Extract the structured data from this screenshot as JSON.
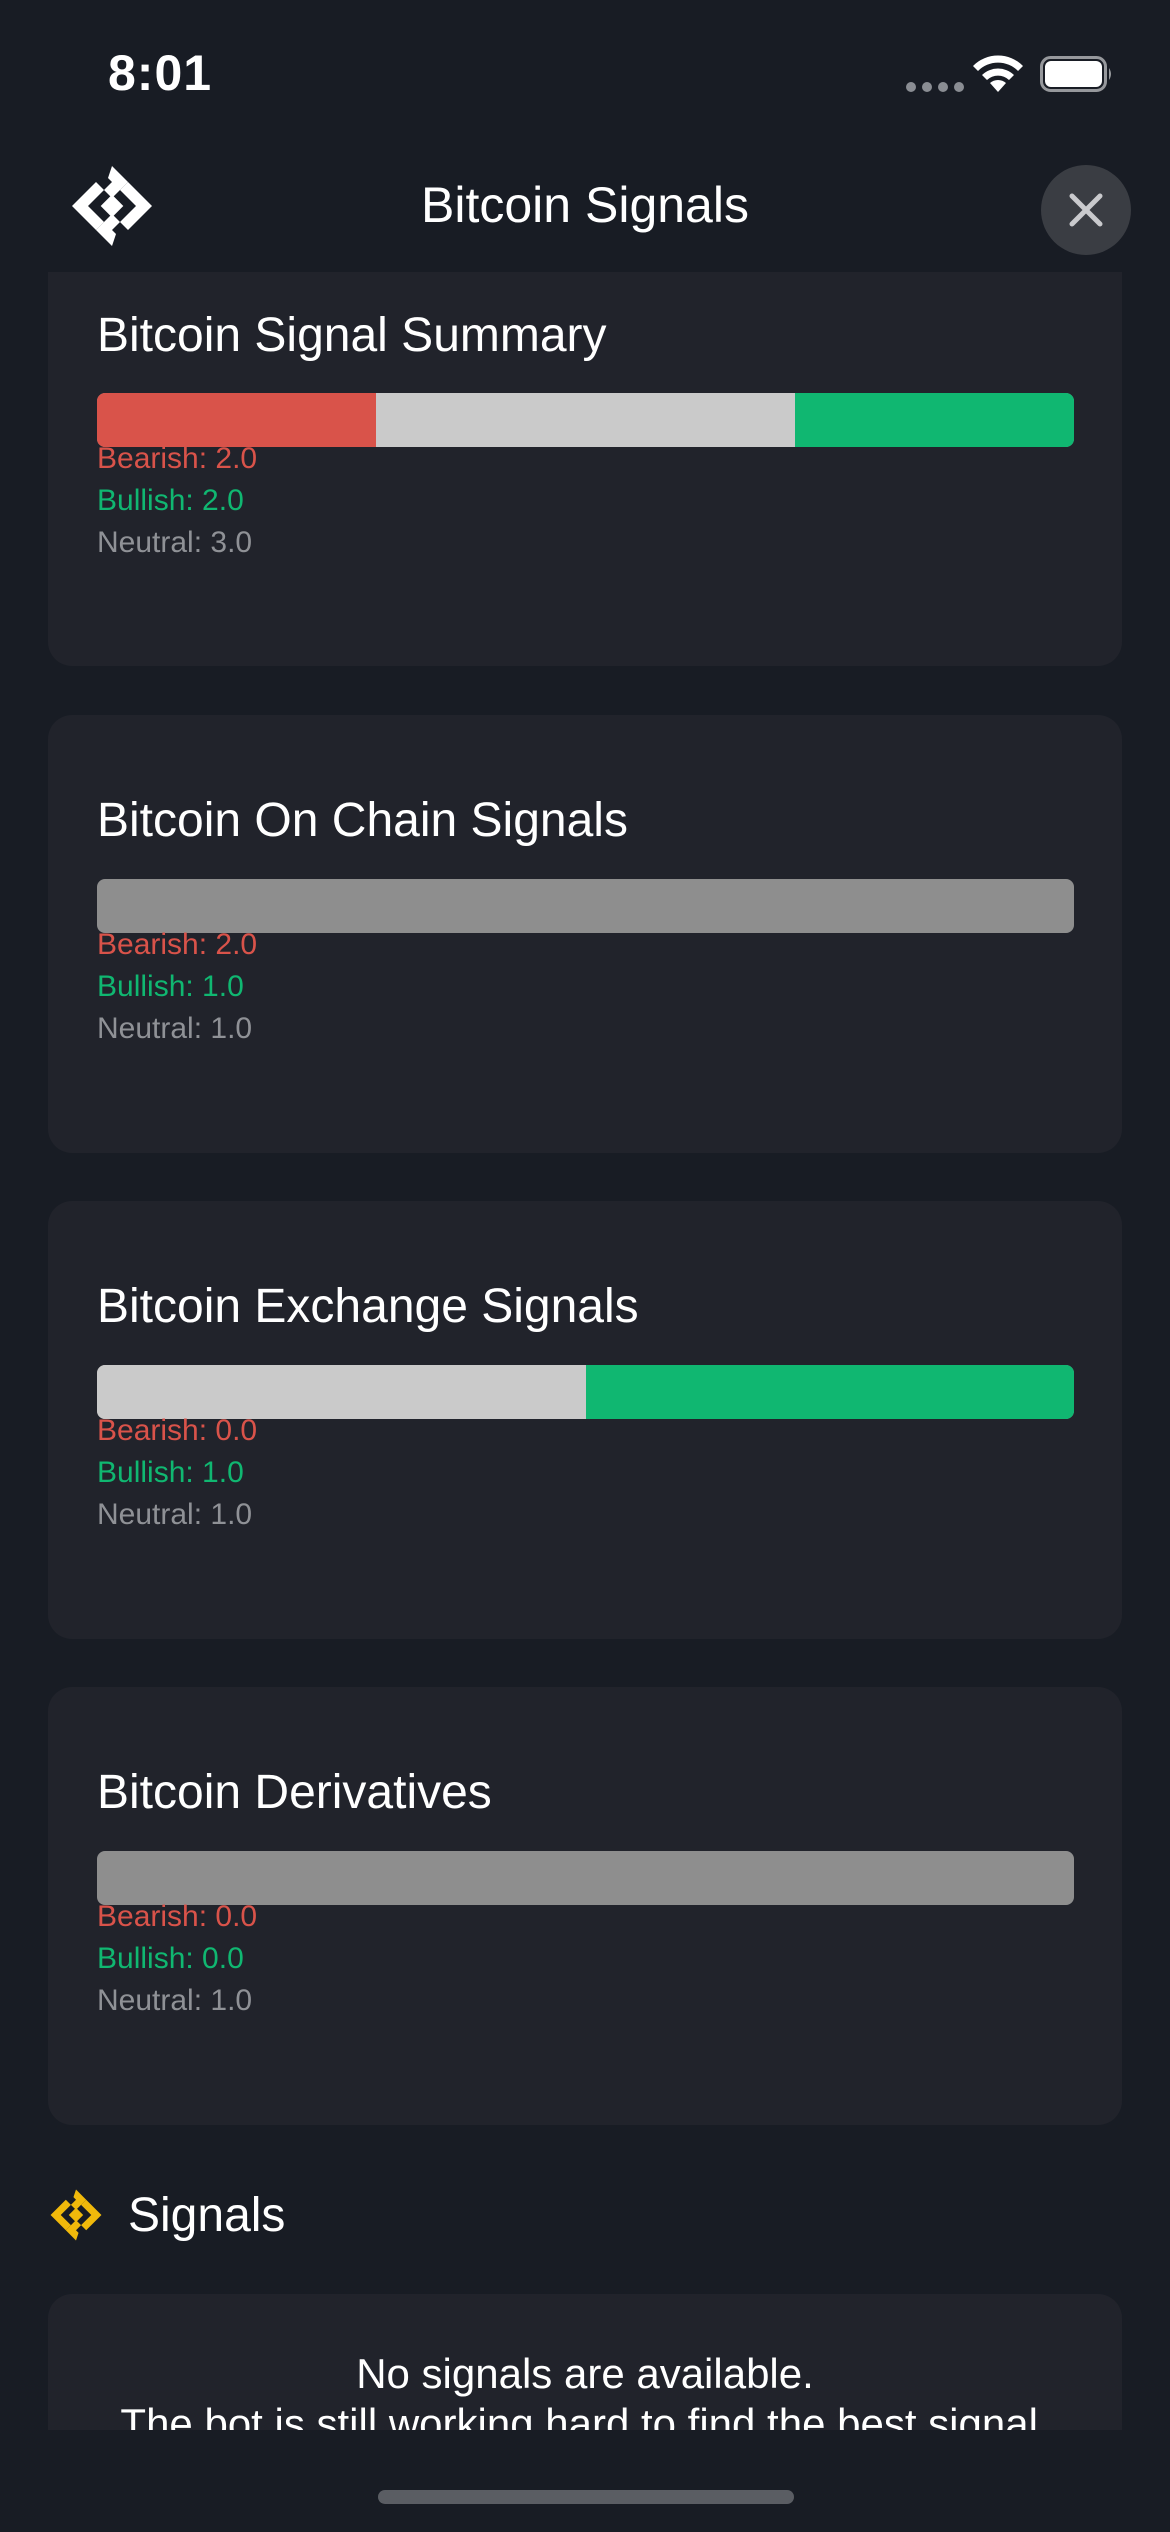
{
  "status_bar": {
    "time": "8:01"
  },
  "header": {
    "title": "Bitcoin Signals",
    "logo_icon": "brand-logo-icon",
    "close_icon": "close-icon"
  },
  "colors": {
    "background": "#181c24",
    "card": "#21232b",
    "bearish": "#d9534a",
    "bullish": "#10b771",
    "neutral_bar": "#cacaca",
    "empty_bar": "#8e8e8e",
    "neutral_text": "#8f9196",
    "accent_gold": "#f0b90b"
  },
  "cards": [
    {
      "title": "Bitcoin Signal Summary",
      "bearish_label": "Bearish: 2.0",
      "bullish_label": "Bullish: 2.0",
      "neutral_label": "Neutral: 3.0",
      "bearish": 2.0,
      "neutral": 3.0,
      "bullish": 2.0
    },
    {
      "title": "Bitcoin On Chain Signals",
      "bearish_label": "Bearish: 2.0",
      "bullish_label": "Bullish: 1.0",
      "neutral_label": "Neutral: 1.0",
      "bar_empty": true
    },
    {
      "title": "Bitcoin Exchange Signals",
      "bearish_label": "Bearish: 0.0",
      "bullish_label": "Bullish: 1.0",
      "neutral_label": "Neutral: 1.0",
      "bearish": 0.0,
      "neutral": 1.0,
      "bullish": 1.0
    },
    {
      "title": "Bitcoin Derivatives",
      "bearish_label": "Bearish: 0.0",
      "bullish_label": "Bullish: 0.0",
      "neutral_label": "Neutral: 1.0",
      "bar_empty": true
    }
  ],
  "signals": {
    "title": "Signals",
    "icon": "signals-logo-icon",
    "empty_line1": "No signals are available.",
    "empty_line2": "The bot is still working hard to find the best signal."
  }
}
